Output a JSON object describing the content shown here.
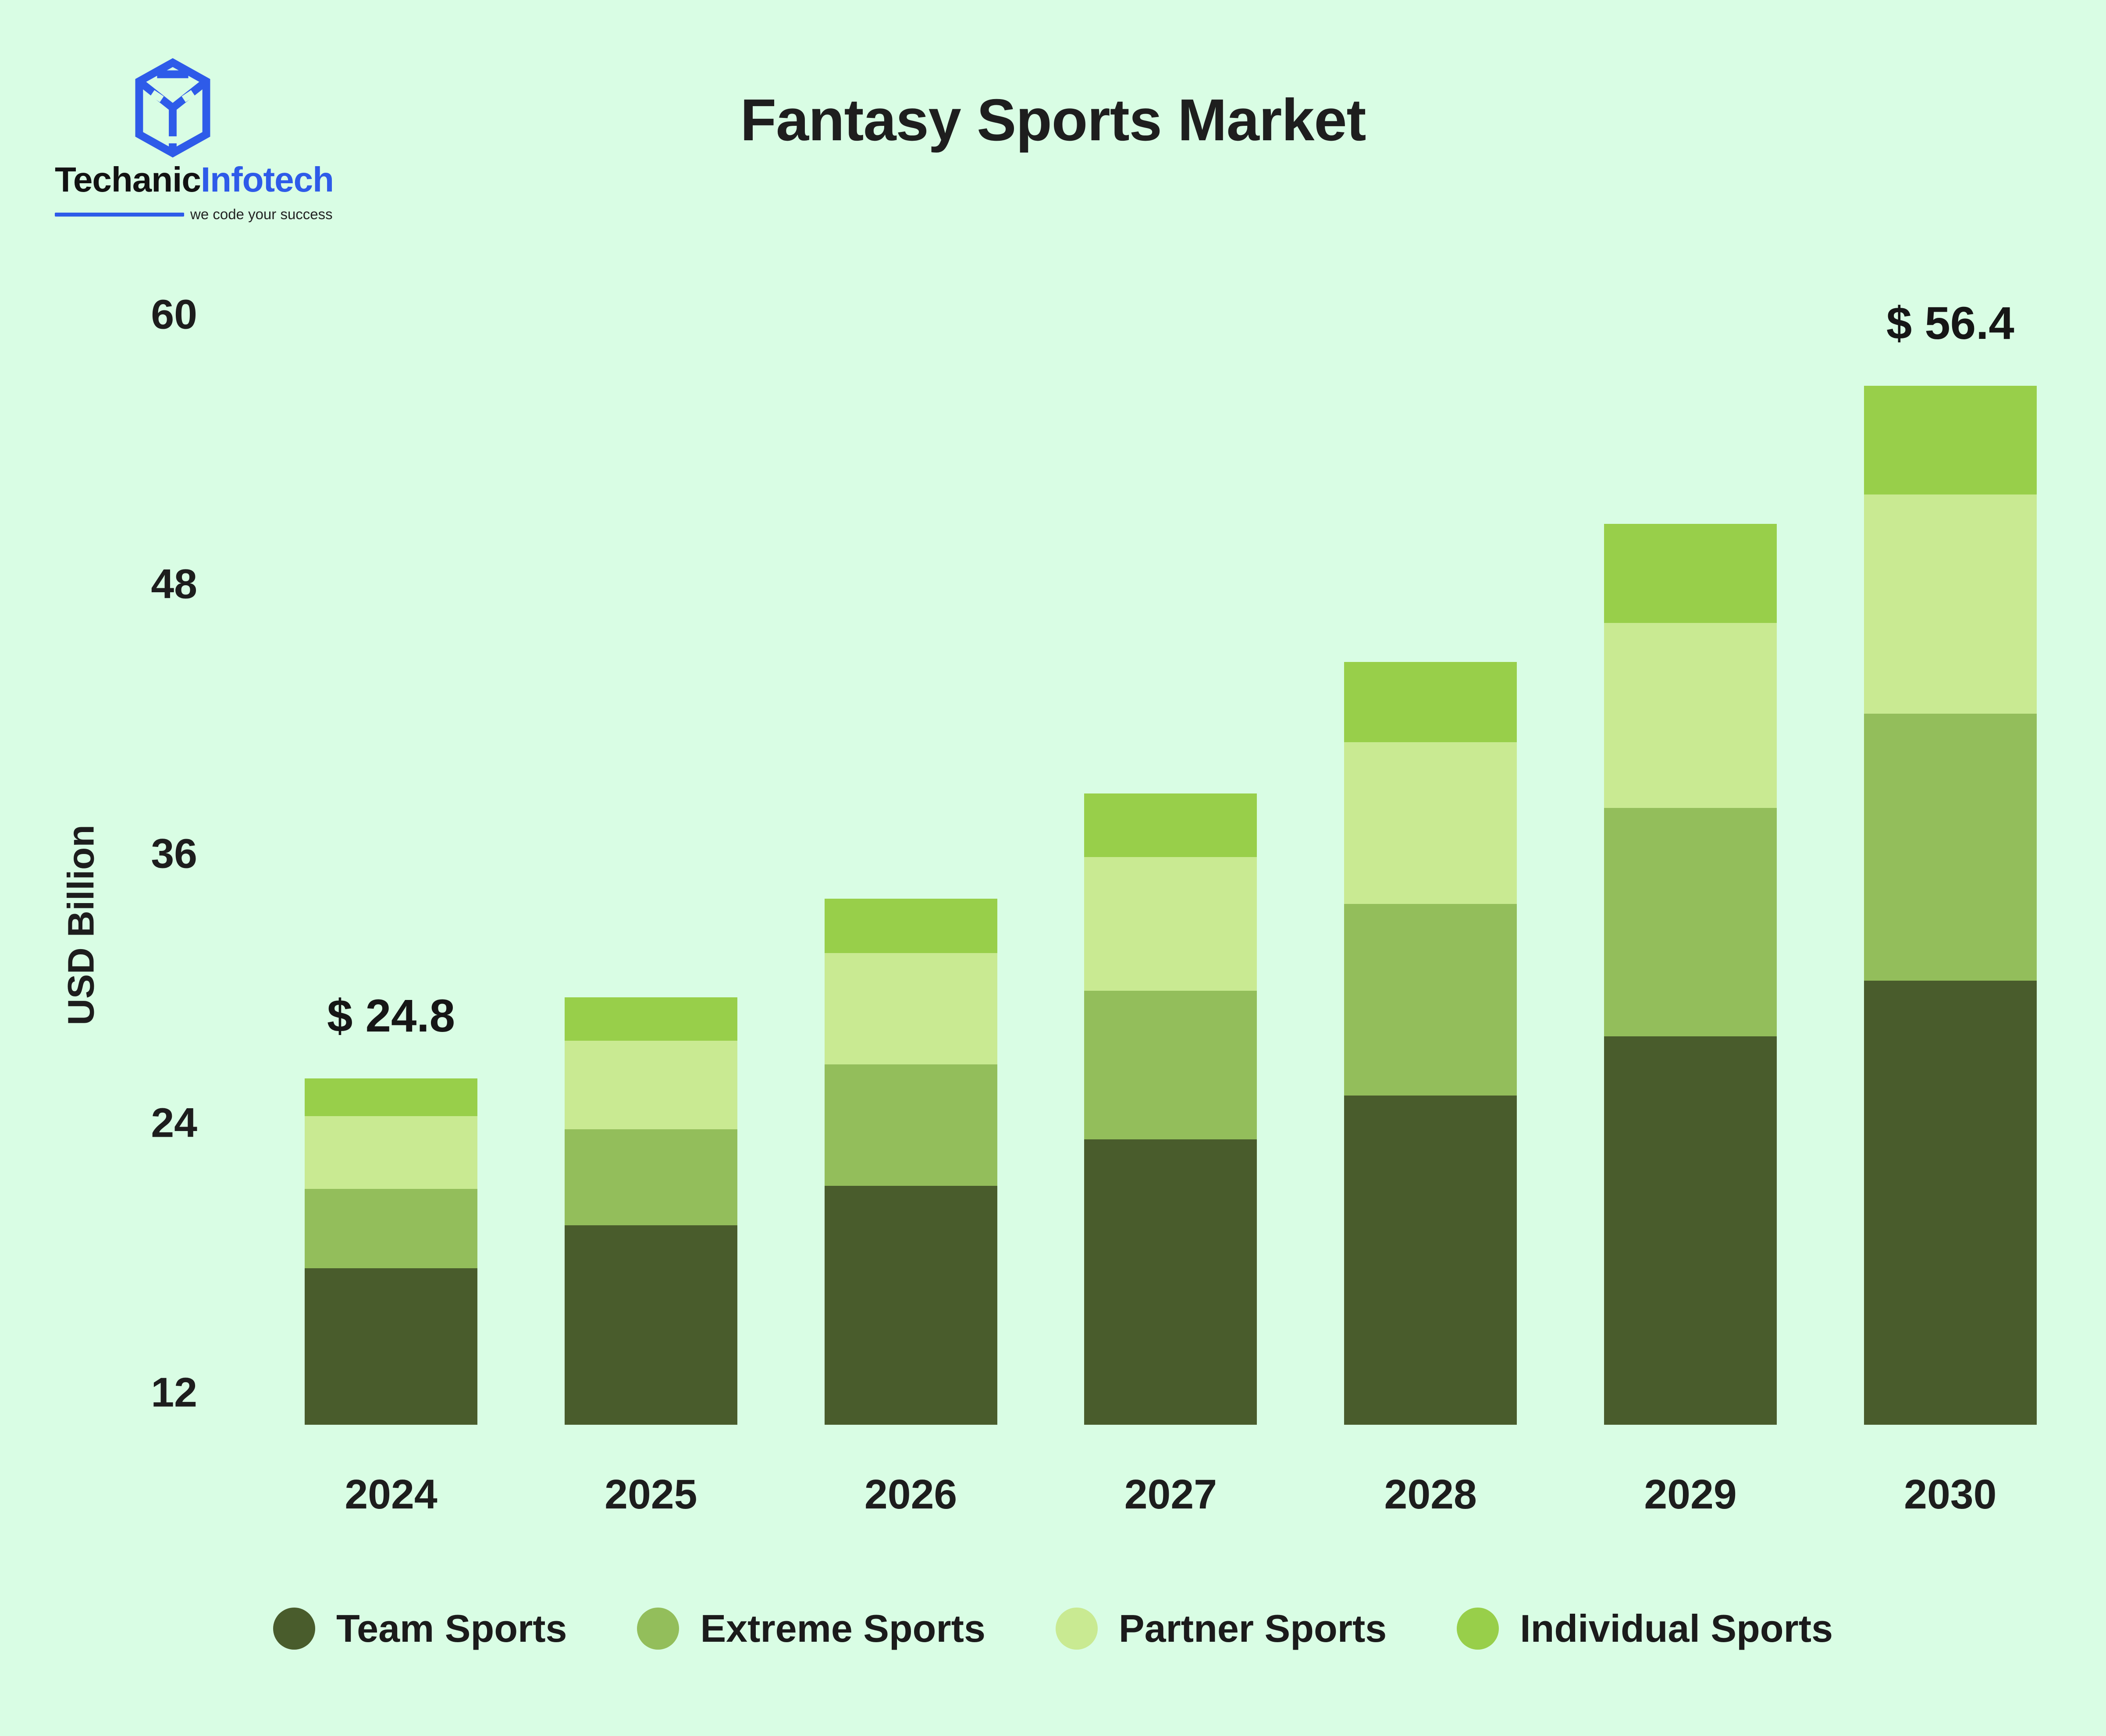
{
  "logo": {
    "brand_part1": "Techanic",
    "brand_part2": "Infotech",
    "tagline": "we code your success",
    "accent_blue": "#2E5BE9"
  },
  "title": "Fantasy Sports Market",
  "colors": {
    "background": "#D9FDE4",
    "text": "#1D1D1D"
  },
  "chart_data": {
    "type": "bar",
    "stacked": true,
    "title": "Fantasy Sports Market",
    "xlabel": "",
    "ylabel": "USD Billion",
    "categories": [
      "2024",
      "2025",
      "2026",
      "2027",
      "2028",
      "2029",
      "2030"
    ],
    "series": [
      {
        "name": "Team Sports",
        "color": "#495C2C",
        "values": [
          11.2,
          13.3,
          15.0,
          17.1,
          18.9,
          21.6,
          24.1
        ]
      },
      {
        "name": "Extreme Sports",
        "color": "#93BE5B",
        "values": [
          5.7,
          6.4,
          7.6,
          8.9,
          11.0,
          12.7,
          14.5
        ]
      },
      {
        "name": "Partner Sports",
        "color": "#C9EA92",
        "values": [
          5.2,
          5.9,
          7.0,
          8.0,
          9.3,
          10.3,
          11.9
        ]
      },
      {
        "name": "Individual Sports",
        "color": "#98CF4A",
        "values": [
          2.7,
          2.9,
          3.4,
          3.8,
          4.6,
          5.5,
          5.9
        ]
      }
    ],
    "totals": [
      24.8,
      28.5,
      33.0,
      37.8,
      43.8,
      50.1,
      56.4
    ],
    "annotations": [
      {
        "category": "2024",
        "text": "$ 24.8"
      },
      {
        "category": "2030",
        "text": "$ 56.4"
      }
    ],
    "y_ticks": [
      12,
      24,
      36,
      48,
      60
    ],
    "ylim": [
      12,
      60
    ],
    "grid": false,
    "legend_position": "bottom"
  }
}
